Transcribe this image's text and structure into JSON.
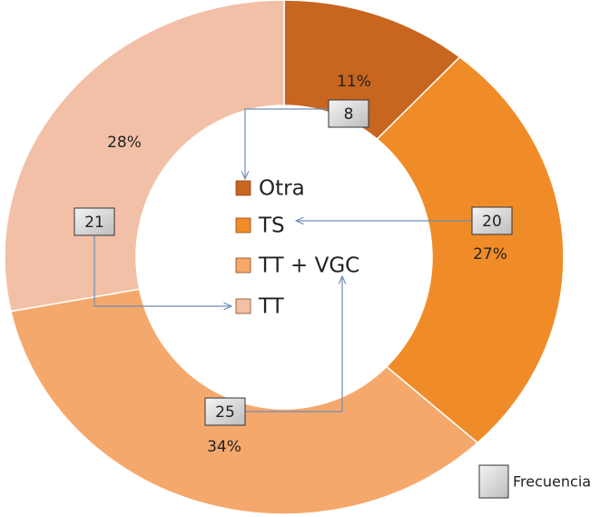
{
  "chart_data": {
    "type": "donut",
    "categories": [
      "Otra",
      "TS",
      "TT + VGC",
      "TT"
    ],
    "colors": [
      "#c8651e",
      "#f08c28",
      "#f5a86c",
      "#f2c0a6"
    ],
    "series": [
      {
        "name": "Frecuencia",
        "color": "#d4d4d4",
        "values": [
          8,
          20,
          25,
          21
        ]
      }
    ],
    "percent_labels": [
      "11%",
      "27%",
      "34%",
      "28%"
    ]
  }
}
